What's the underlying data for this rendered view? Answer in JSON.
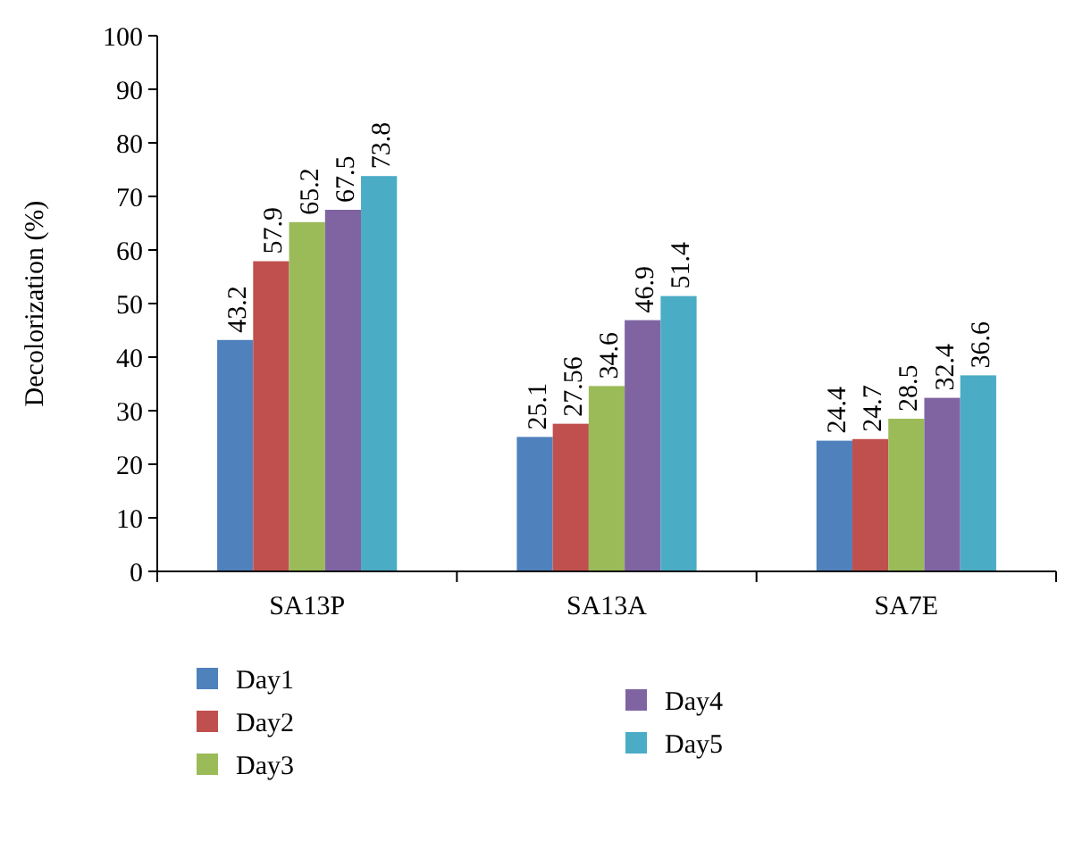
{
  "chart_data": {
    "type": "bar",
    "ylabel": "Decolorization (%)",
    "categories": [
      "SA13P",
      "SA13A",
      "SA7E"
    ],
    "series": [
      {
        "name": "Day1",
        "color": "#4f81bd",
        "values": [
          43.2,
          25.1,
          24.4
        ]
      },
      {
        "name": "Day2",
        "color": "#c0504d",
        "values": [
          57.9,
          27.56,
          24.7
        ]
      },
      {
        "name": "Day3",
        "color": "#9bbb59",
        "values": [
          65.2,
          34.6,
          28.5
        ]
      },
      {
        "name": "Day4",
        "color": "#8064a2",
        "values": [
          67.5,
          46.9,
          32.4
        ]
      },
      {
        "name": "Day5",
        "color": "#4bacc6",
        "values": [
          73.8,
          51.4,
          36.6
        ]
      }
    ],
    "ylim": [
      0,
      100
    ],
    "yticks": [
      0,
      10,
      20,
      30,
      40,
      50,
      60,
      70,
      80,
      90,
      100
    ],
    "data_labels": true,
    "legend": "bottom",
    "grid": false
  }
}
